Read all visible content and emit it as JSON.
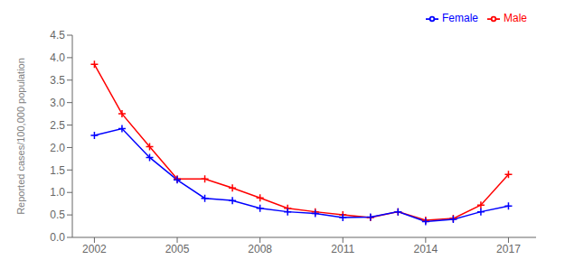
{
  "chart_data": {
    "type": "line",
    "ylabel": "Reported cases/100,000 population",
    "x": [
      2002,
      2003,
      2004,
      2005,
      2006,
      2007,
      2008,
      2009,
      2010,
      2011,
      2012,
      2013,
      2014,
      2015,
      2016,
      2017
    ],
    "series": [
      {
        "name": "Male",
        "color": "#ff0000",
        "marker": "plus",
        "values": [
          3.85,
          2.75,
          2.02,
          1.3,
          1.3,
          1.1,
          0.88,
          0.65,
          0.57,
          0.5,
          0.44,
          0.57,
          0.38,
          0.42,
          0.72,
          1.4
        ]
      },
      {
        "name": "Female",
        "color": "#0000ff",
        "marker": "plus",
        "values": [
          2.27,
          2.42,
          1.78,
          1.28,
          0.87,
          0.82,
          0.65,
          0.57,
          0.53,
          0.44,
          0.45,
          0.57,
          0.35,
          0.4,
          0.57,
          0.7
        ]
      }
    ],
    "xlim": [
      2001.2,
      2018.0
    ],
    "xticks": [
      2002,
      2005,
      2008,
      2011,
      2014,
      2017
    ],
    "ylim": [
      0,
      4.5
    ],
    "yticks": [
      {
        "value": 0,
        "label": "0.0"
      },
      {
        "value": 0.5,
        "label": "0.5"
      },
      {
        "value": 1,
        "label": "1.0"
      },
      {
        "value": 1.5,
        "label": "1.5"
      },
      {
        "value": 2,
        "label": "2.0"
      },
      {
        "value": 2.5,
        "label": "2.5"
      },
      {
        "value": 3,
        "label": "3.0"
      },
      {
        "value": 3.5,
        "label": "3.5"
      },
      {
        "value": 4,
        "label": "4.0"
      },
      {
        "value": 4.5,
        "label": "4.5"
      }
    ],
    "grid": false,
    "legend": "upper right"
  }
}
